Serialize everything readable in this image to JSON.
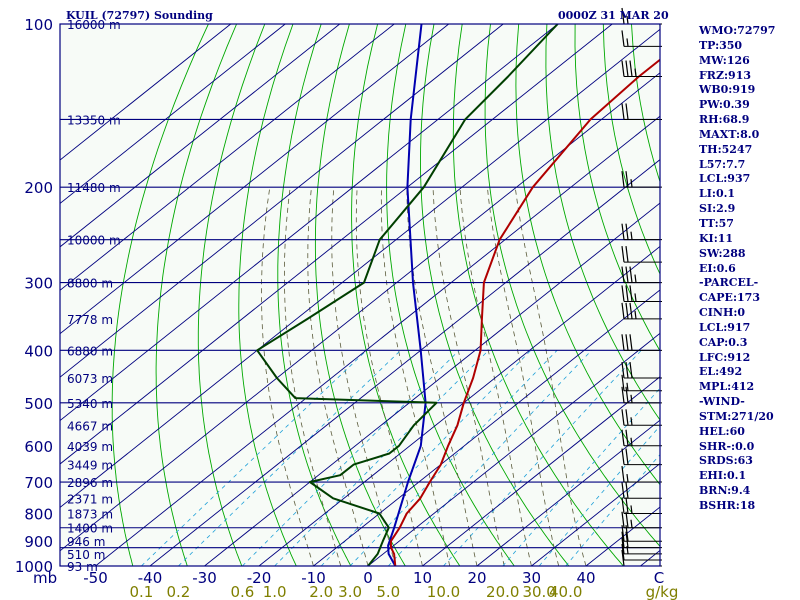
{
  "title": "KUIL (72797) Sounding",
  "valid_time": "0000Z 31 MAR 20",
  "stats": [
    "WMO:72797",
    "TP:350",
    "MW:126",
    "FRZ:913",
    "WB0:919",
    "PW:0.39",
    "RH:68.9",
    "MAXT:8.0",
    "TH:5247",
    "L57:7.7",
    "LCL:937",
    "LI:0.1",
    "SI:2.9",
    "TT:57",
    "KI:11",
    "SW:288",
    "EI:0.6",
    "-PARCEL-",
    "CAPE:173",
    "CINH:0",
    "LCL:917",
    "CAP:0.3",
    "LFC:912",
    "EL:492",
    "MPL:412",
    "-WIND-",
    "STM:271/20",
    "HEL:60",
    "SHR-:0.0",
    "SRDS:63",
    "EHI:0.1",
    "BRN:9.4",
    "BSHR:18"
  ],
  "colors": {
    "background": "#f7fbf7",
    "isobar": "#00007f",
    "isotherm": "#00007f",
    "dry_adiabat": "#00a800",
    "moist_adiabat": "#5a5a3a",
    "mixing_ratio": "#1fa0d8",
    "temperature": "#b00000",
    "dewpoint": "#003f00",
    "parcel": "#0000b0",
    "text_blue": "#00007f",
    "text_olive": "#7f7f00",
    "wind": "#000000"
  },
  "chart_data": {
    "type": "skew-t",
    "pressure_axis": {
      "unit": "mb",
      "ylim": [
        1000,
        100
      ],
      "labeled_levels": [
        100,
        200,
        300,
        400,
        500,
        600,
        700,
        800,
        900,
        1000
      ],
      "isobar_levels": [
        1000,
        925,
        850,
        700,
        500,
        400,
        300,
        250,
        200,
        150,
        100
      ],
      "unit_label": "mb"
    },
    "temperature_axis": {
      "unit": "C",
      "ticks": [
        -50,
        -40,
        -30,
        -20,
        -10,
        0,
        10,
        20,
        30,
        40
      ],
      "end_label": "C"
    },
    "mixing_ratio_axis": {
      "unit": "g/kg",
      "ticks": [
        "0.1",
        "0.2",
        "0.6",
        "1.0",
        "2.0",
        "3.0",
        "5.0",
        "10.0",
        "20.0",
        "30.0",
        "40.0"
      ],
      "unit_label": "g/kg"
    },
    "height_labels": [
      {
        "p": 100,
        "label": "16000 m"
      },
      {
        "p": 150,
        "label": "13350 m"
      },
      {
        "p": 200,
        "label": "11480 m"
      },
      {
        "p": 250,
        "label": "10000 m"
      },
      {
        "p": 300,
        "label": "8800 m"
      },
      {
        "p": 350,
        "label": "7778 m"
      },
      {
        "p": 400,
        "label": "6880 m"
      },
      {
        "p": 450,
        "label": "6073 m"
      },
      {
        "p": 500,
        "label": "5340 m"
      },
      {
        "p": 550,
        "label": "4667 m"
      },
      {
        "p": 600,
        "label": "4039 m"
      },
      {
        "p": 650,
        "label": "3449 m"
      },
      {
        "p": 700,
        "label": "2896 m"
      },
      {
        "p": 750,
        "label": "2371 m"
      },
      {
        "p": 800,
        "label": "1873 m"
      },
      {
        "p": 850,
        "label": "1400 m"
      },
      {
        "p": 900,
        "label": "946 m"
      },
      {
        "p": 950,
        "label": "510 m"
      },
      {
        "p": 1000,
        "label": "93 m"
      }
    ],
    "temperature": [
      {
        "p": 1000,
        "t": 5
      },
      {
        "p": 950,
        "t": 2
      },
      {
        "p": 925,
        "t": 0
      },
      {
        "p": 900,
        "t": -1.5
      },
      {
        "p": 850,
        "t": -3
      },
      {
        "p": 800,
        "t": -5
      },
      {
        "p": 750,
        "t": -6
      },
      {
        "p": 700,
        "t": -8
      },
      {
        "p": 650,
        "t": -10
      },
      {
        "p": 600,
        "t": -13
      },
      {
        "p": 550,
        "t": -16
      },
      {
        "p": 500,
        "t": -20
      },
      {
        "p": 450,
        "t": -24
      },
      {
        "p": 400,
        "t": -29
      },
      {
        "p": 350,
        "t": -36
      },
      {
        "p": 300,
        "t": -44
      },
      {
        "p": 250,
        "t": -51
      },
      {
        "p": 200,
        "t": -57
      },
      {
        "p": 150,
        "t": -62
      },
      {
        "p": 125,
        "t": -63
      },
      {
        "p": 100,
        "t": -63
      }
    ],
    "dewpoint": [
      {
        "p": 1000,
        "t": 0
      },
      {
        "p": 950,
        "t": -1
      },
      {
        "p": 900,
        "t": -3
      },
      {
        "p": 850,
        "t": -5
      },
      {
        "p": 800,
        "t": -10
      },
      {
        "p": 750,
        "t": -22
      },
      {
        "p": 700,
        "t": -30
      },
      {
        "p": 680,
        "t": -26
      },
      {
        "p": 650,
        "t": -26
      },
      {
        "p": 620,
        "t": -22
      },
      {
        "p": 600,
        "t": -22
      },
      {
        "p": 550,
        "t": -24
      },
      {
        "p": 500,
        "t": -25
      },
      {
        "p": 490,
        "t": -52
      },
      {
        "p": 450,
        "t": -60
      },
      {
        "p": 400,
        "t": -70
      },
      {
        "p": 350,
        "t": -68
      },
      {
        "p": 300,
        "t": -66
      },
      {
        "p": 250,
        "t": -73
      },
      {
        "p": 200,
        "t": -77
      },
      {
        "p": 150,
        "t": -85
      },
      {
        "p": 125,
        "t": -87
      },
      {
        "p": 100,
        "t": -90
      }
    ],
    "parcel": [
      {
        "p": 1000,
        "t": 5
      },
      {
        "p": 950,
        "t": 1
      },
      {
        "p": 917,
        "t": -1
      },
      {
        "p": 850,
        "t": -4
      },
      {
        "p": 800,
        "t": -6.5
      },
      {
        "p": 700,
        "t": -12
      },
      {
        "p": 600,
        "t": -18
      },
      {
        "p": 500,
        "t": -27
      },
      {
        "p": 400,
        "t": -40
      },
      {
        "p": 300,
        "t": -57
      },
      {
        "p": 200,
        "t": -80
      },
      {
        "p": 150,
        "t": -95
      },
      {
        "p": 100,
        "t": -115
      }
    ],
    "wind_barbs": [
      {
        "p": 100,
        "kt": 15
      },
      {
        "p": 110,
        "kt": 15
      },
      {
        "p": 125,
        "kt": 35
      },
      {
        "p": 150,
        "kt": 20
      },
      {
        "p": 200,
        "kt": 25
      },
      {
        "p": 250,
        "kt": 25
      },
      {
        "p": 275,
        "kt": 20
      },
      {
        "p": 300,
        "kt": 35
      },
      {
        "p": 325,
        "kt": 35
      },
      {
        "p": 350,
        "kt": 35
      },
      {
        "p": 400,
        "kt": 30
      },
      {
        "p": 450,
        "kt": 30
      },
      {
        "p": 475,
        "kt": 15
      },
      {
        "p": 500,
        "kt": 25
      },
      {
        "p": 550,
        "kt": 25
      },
      {
        "p": 600,
        "kt": 25
      },
      {
        "p": 650,
        "kt": 20
      },
      {
        "p": 700,
        "kt": 15
      },
      {
        "p": 750,
        "kt": 20
      },
      {
        "p": 800,
        "kt": 25
      },
      {
        "p": 850,
        "kt": 25
      },
      {
        "p": 900,
        "kt": 20
      },
      {
        "p": 925,
        "kt": 20
      },
      {
        "p": 950,
        "kt": 15
      },
      {
        "p": 975,
        "kt": 10
      },
      {
        "p": 1000,
        "kt": 10
      }
    ]
  }
}
